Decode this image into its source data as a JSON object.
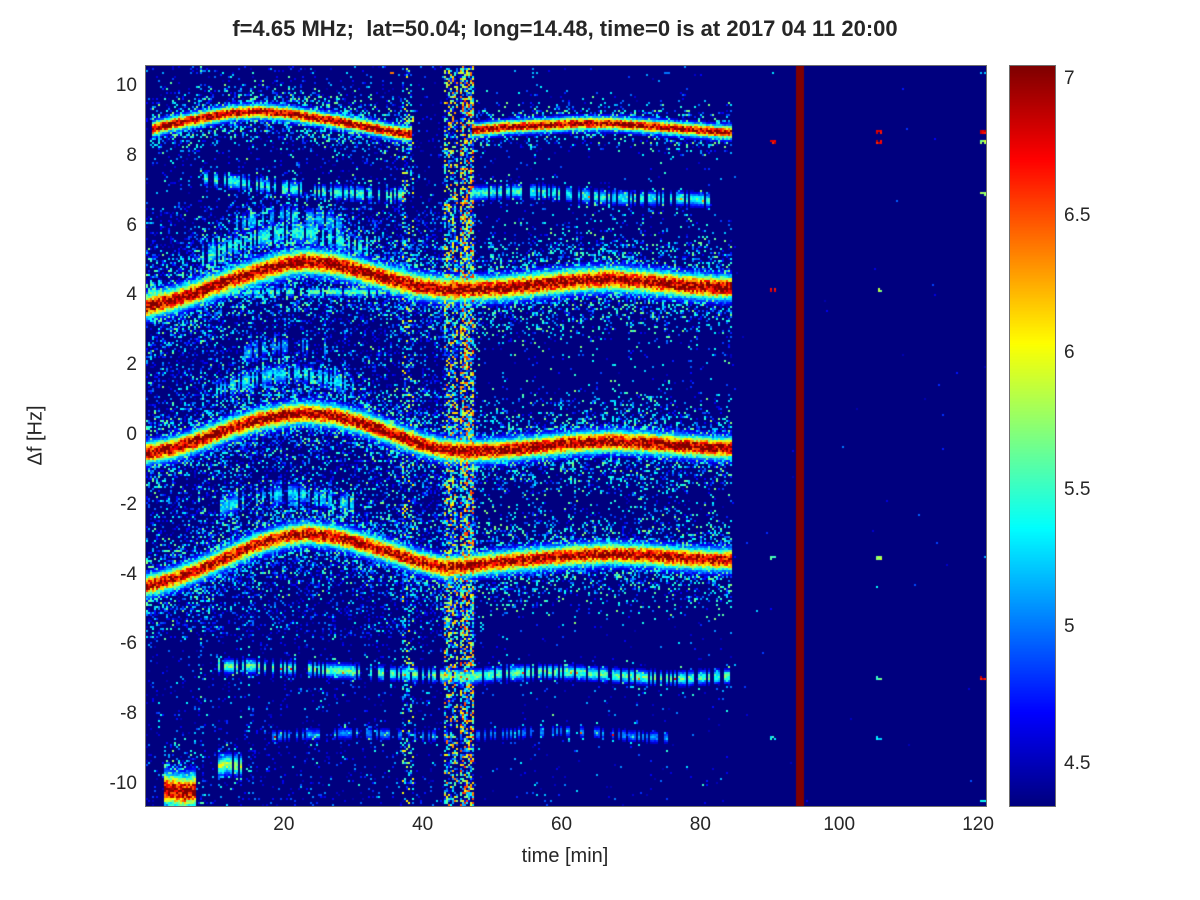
{
  "style": {
    "background": "#ffffff",
    "text_color": "#262626",
    "axis_box_color": "#6f6f6f",
    "colormap": "jet"
  },
  "chart_data": {
    "type": "heatmap",
    "title": "f=4.65 MHz;  lat=50.04; long=14.48, time=0 is at 2017 04 11 20:00",
    "xlabel": "time [min]",
    "ylabel": "Δf [Hz]",
    "xlim": [
      0,
      121
    ],
    "ylim": [
      -10.6,
      10.6
    ],
    "xticks": [
      20,
      40,
      60,
      80,
      100,
      120
    ],
    "yticks": [
      -10,
      -8,
      -6,
      -4,
      -2,
      0,
      2,
      4,
      6,
      8,
      10
    ],
    "colorbar": {
      "min": 4.35,
      "max": 7.05,
      "ticks": [
        4.5,
        5,
        5.5,
        6,
        6.5,
        7
      ]
    },
    "noise": {
      "left_t_max": 47.5,
      "p_central": 0.2,
      "p_outer": 0.07,
      "central_band": [
        -5.8,
        6.6
      ],
      "right_t_max": 85,
      "right_p": 0.015,
      "far_p": 0.0008,
      "amp": 1.15
    },
    "vertical_bands": [
      {
        "t": 8,
        "w": 0.8,
        "p": 0.1,
        "boost": 1.2
      },
      {
        "t": 15,
        "w": 0.8,
        "p": 0.08,
        "boost": 1.0
      },
      {
        "t": 37.7,
        "w": 1.4,
        "p": 0.22,
        "boost": 1.6
      },
      {
        "t": 43.8,
        "w": 1.7,
        "p": 0.45,
        "boost": 1.9
      },
      {
        "t": 46.2,
        "w": 1.7,
        "p": 0.65,
        "boost": 2.1
      },
      {
        "t": 55.8,
        "w": 0.5,
        "p": 0.05,
        "boost": 0.8
      }
    ],
    "red_line_t": 94,
    "traces": [
      {
        "name": "doppler-9hz-left",
        "intensity": 7.0,
        "core_width": 0.13,
        "halo_sigma": 0.45,
        "halo_density": 0.5,
        "x": [
          1,
          4,
          8,
          12,
          16,
          20,
          24,
          28,
          32,
          36,
          38
        ],
        "y": [
          8.8,
          8.95,
          9.1,
          9.25,
          9.3,
          9.25,
          9.12,
          9.0,
          8.85,
          8.7,
          8.65
        ]
      },
      {
        "name": "doppler-9hz-right",
        "intensity": 7.0,
        "core_width": 0.12,
        "halo_sigma": 0.35,
        "halo_density": 0.45,
        "x": [
          47,
          52,
          57,
          62,
          67,
          72,
          77,
          82,
          84
        ],
        "y": [
          8.75,
          8.85,
          8.9,
          8.95,
          8.95,
          8.88,
          8.8,
          8.72,
          8.7
        ]
      },
      {
        "name": "doppler-7hz-left",
        "intensity": 5.5,
        "core_width": 0.12,
        "halo_sigma": 0.25,
        "halo_density": 0.25,
        "dropout": 0.4,
        "spark": 0.05,
        "x": [
          8,
          12,
          16,
          20,
          25,
          30,
          35,
          37
        ],
        "y": [
          7.4,
          7.3,
          7.2,
          7.1,
          7.0,
          6.95,
          6.9,
          6.9
        ]
      },
      {
        "name": "doppler-7hz-right",
        "intensity": 5.45,
        "core_width": 0.12,
        "halo_sigma": 0.25,
        "halo_density": 0.25,
        "dropout": 0.35,
        "spark": 0.05,
        "x": [
          47,
          52,
          57,
          62,
          67,
          72,
          77,
          81
        ],
        "y": [
          6.95,
          7.0,
          7.0,
          6.9,
          6.82,
          6.8,
          6.8,
          6.75
        ]
      },
      {
        "name": "doppler-plus4-main",
        "intensity": 7.05,
        "core_width": 0.22,
        "halo_sigma": 0.85,
        "halo_density": 0.5,
        "x": [
          0,
          4,
          8,
          12,
          16,
          20,
          23,
          27,
          31,
          35,
          39,
          43,
          47,
          52,
          57,
          62,
          67,
          72,
          77,
          82,
          84
        ],
        "y": [
          3.7,
          3.9,
          4.15,
          4.45,
          4.7,
          4.92,
          5.0,
          4.92,
          4.72,
          4.5,
          4.3,
          4.2,
          4.2,
          4.25,
          4.35,
          4.45,
          4.5,
          4.42,
          4.32,
          4.25,
          4.25
        ]
      },
      {
        "name": "plus4-baseline",
        "intensity": 5.6,
        "core_width": 0.07,
        "halo_sigma": 0.12,
        "halo_density": 0.15,
        "dropout": 0.3,
        "x": [
          0,
          45
        ],
        "y": [
          4.12,
          4.12
        ]
      },
      {
        "name": "plus4-echo1",
        "intensity": 5.4,
        "core_width": 0.18,
        "halo_sigma": 0.4,
        "halo_density": 0.45,
        "dropout": 0.3,
        "x": [
          8,
          12,
          16,
          20,
          24,
          28,
          32
        ],
        "y": [
          5.1,
          5.4,
          5.65,
          5.85,
          5.8,
          5.6,
          5.35
        ]
      },
      {
        "name": "plus4-echo2",
        "intensity": 5.15,
        "core_width": 0.16,
        "halo_sigma": 0.35,
        "halo_density": 0.35,
        "dropout": 0.45,
        "x": [
          12,
          16,
          20,
          24,
          28
        ],
        "y": [
          6.0,
          6.2,
          6.35,
          6.25,
          6.05
        ]
      },
      {
        "name": "doppler-0hz-main",
        "intensity": 7.05,
        "core_width": 0.2,
        "halo_sigma": 0.75,
        "halo_density": 0.5,
        "x": [
          0,
          4,
          8,
          12,
          16,
          20,
          23,
          27,
          31,
          35,
          39,
          43,
          47,
          52,
          57,
          62,
          67,
          72,
          77,
          82,
          84
        ],
        "y": [
          -0.5,
          -0.35,
          -0.1,
          0.2,
          0.45,
          0.6,
          0.65,
          0.58,
          0.38,
          0.1,
          -0.2,
          -0.4,
          -0.45,
          -0.4,
          -0.3,
          -0.2,
          -0.15,
          -0.2,
          -0.28,
          -0.35,
          -0.35
        ]
      },
      {
        "name": "zero-echo1",
        "intensity": 5.3,
        "core_width": 0.16,
        "halo_sigma": 0.35,
        "halo_density": 0.4,
        "dropout": 0.35,
        "x": [
          10,
          14,
          18,
          22,
          26,
          30
        ],
        "y": [
          1.3,
          1.55,
          1.75,
          1.8,
          1.65,
          1.4
        ]
      },
      {
        "name": "zero-echo2",
        "intensity": 5.05,
        "core_width": 0.15,
        "halo_sigma": 0.3,
        "halo_density": 0.35,
        "dropout": 0.5,
        "x": [
          14,
          18,
          22,
          26
        ],
        "y": [
          2.35,
          2.55,
          2.6,
          2.45
        ]
      },
      {
        "name": "doppler-minus3-main",
        "intensity": 6.95,
        "core_width": 0.2,
        "halo_sigma": 0.75,
        "halo_density": 0.5,
        "x": [
          0,
          4,
          8,
          12,
          16,
          20,
          23,
          27,
          31,
          35,
          39,
          43,
          47,
          52,
          57,
          62,
          67,
          72,
          77,
          82,
          84
        ],
        "y": [
          -4.3,
          -4.1,
          -3.8,
          -3.45,
          -3.1,
          -2.88,
          -2.8,
          -2.88,
          -3.08,
          -3.32,
          -3.58,
          -3.78,
          -3.7,
          -3.6,
          -3.5,
          -3.42,
          -3.38,
          -3.42,
          -3.5,
          -3.55,
          -3.55
        ]
      },
      {
        "name": "minus3-echo1",
        "intensity": 5.25,
        "core_width": 0.16,
        "halo_sigma": 0.35,
        "halo_density": 0.4,
        "dropout": 0.4,
        "x": [
          10,
          14,
          18,
          22,
          26,
          30
        ],
        "y": [
          -2.1,
          -1.85,
          -1.7,
          -1.65,
          -1.8,
          -2.0
        ]
      },
      {
        "name": "doppler-minus7",
        "intensity": 5.6,
        "core_width": 0.12,
        "halo_sigma": 0.22,
        "halo_density": 0.2,
        "dropout": 0.35,
        "spark": 0.05,
        "x": [
          10,
          15,
          20,
          25,
          30,
          35,
          40,
          47,
          52,
          57,
          62,
          67,
          72,
          77,
          82,
          84
        ],
        "y": [
          -6.6,
          -6.6,
          -6.65,
          -6.7,
          -6.75,
          -6.8,
          -6.85,
          -6.9,
          -6.8,
          -6.75,
          -6.78,
          -6.85,
          -6.92,
          -6.95,
          -6.9,
          -6.88
        ]
      },
      {
        "name": "doppler-minus85",
        "intensity": 5.05,
        "core_width": 0.1,
        "halo_sigma": 0.18,
        "halo_density": 0.15,
        "dropout": 0.55,
        "spark": 0.03,
        "x": [
          18,
          25,
          30,
          35,
          40,
          45,
          50,
          55,
          60,
          65,
          70,
          75
        ],
        "y": [
          -8.6,
          -8.55,
          -8.5,
          -8.55,
          -8.6,
          -8.6,
          -8.55,
          -8.5,
          -8.45,
          -8.5,
          -8.6,
          -8.65
        ]
      },
      {
        "name": "bottom-red-blob",
        "intensity": 7.0,
        "core_width": 0.3,
        "halo_sigma": 0.55,
        "halo_density": 0.6,
        "x": [
          2.5,
          4,
          5.5,
          7
        ],
        "y": [
          -10.1,
          -10.15,
          -10.2,
          -10.15
        ]
      },
      {
        "name": "small-green-blob",
        "intensity": 5.8,
        "core_width": 0.18,
        "halo_sigma": 0.3,
        "halo_density": 0.4,
        "dropout": 0.2,
        "x": [
          10.5,
          12,
          13.5
        ],
        "y": [
          -9.45,
          -9.4,
          -9.45
        ]
      }
    ],
    "dot_columns": {
      "x": [
        90.3,
        105.5,
        120.5
      ],
      "y": [
        8.75,
        8.5,
        7.0,
        4.25,
        2.5,
        -0.3,
        -3.45,
        -6.9,
        -8.6
      ]
    },
    "edge_dots": [
      {
        "x": 35.5,
        "y": 10.45,
        "v": 6.4
      },
      {
        "x": 45.2,
        "y": 10.4,
        "v": 5.9
      },
      {
        "x": 56,
        "y": 10.45,
        "v": 5.2
      },
      {
        "x": 75,
        "y": 10.45,
        "v": 5.0
      },
      {
        "x": 90.3,
        "y": 10.45,
        "v": 5.3
      },
      {
        "x": 120.5,
        "y": 10.45,
        "v": 5.2
      },
      {
        "x": 45.2,
        "y": -10.45,
        "v": 5.8
      },
      {
        "x": 120.5,
        "y": -10.4,
        "v": 5.4
      },
      {
        "x": 8,
        "y": 10.5,
        "v": 5.0
      }
    ]
  }
}
